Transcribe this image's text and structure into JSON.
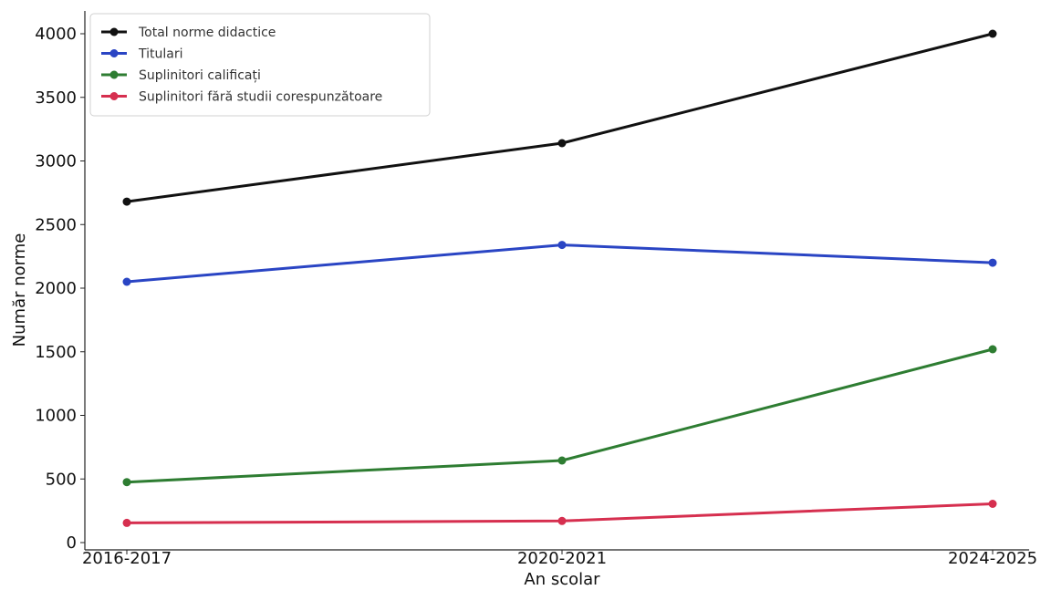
{
  "chart_data": {
    "type": "line",
    "title": "",
    "xlabel": "An scolar",
    "ylabel": "Număr norme",
    "categories": [
      "2016-2017",
      "2020-2021",
      "2024-2025"
    ],
    "ylim": [
      0,
      4150
    ],
    "yticks": [
      0,
      500,
      1000,
      1500,
      2000,
      2500,
      3000,
      3500,
      4000
    ],
    "grid": false,
    "legend_position": "top-left",
    "series": [
      {
        "name": "Total norme didactice",
        "values": [
          2680,
          3140,
          4000
        ],
        "color": "#111111"
      },
      {
        "name": "Titulari",
        "values": [
          2050,
          2340,
          2200
        ],
        "color": "#2a45c4"
      },
      {
        "name": "Suplinitori calificați",
        "values": [
          475,
          645,
          1520
        ],
        "color": "#2e7d32"
      },
      {
        "name": "Suplinitori fără studii corespunzătoare",
        "values": [
          155,
          170,
          305
        ],
        "color": "#d62f4f"
      }
    ]
  }
}
